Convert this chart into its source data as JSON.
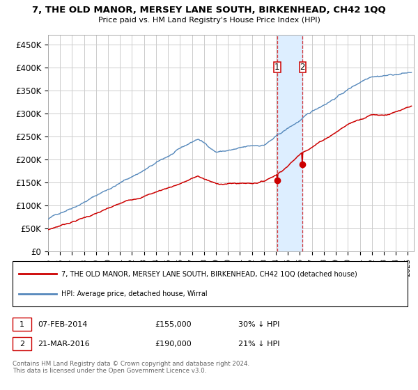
{
  "title": "7, THE OLD MANOR, MERSEY LANE SOUTH, BIRKENHEAD, CH42 1QQ",
  "subtitle": "Price paid vs. HM Land Registry's House Price Index (HPI)",
  "ylabel_ticks": [
    "£0",
    "£50K",
    "£100K",
    "£150K",
    "£200K",
    "£250K",
    "£300K",
    "£350K",
    "£400K",
    "£450K"
  ],
  "ytick_values": [
    0,
    50000,
    100000,
    150000,
    200000,
    250000,
    300000,
    350000,
    400000,
    450000
  ],
  "ylim": [
    0,
    470000
  ],
  "xlim_start": 1995.0,
  "xlim_end": 2025.5,
  "sale1_date": 2014.1,
  "sale1_price": 155000,
  "sale1_label": "07-FEB-2014",
  "sale1_pct": "30% ↓ HPI",
  "sale2_date": 2016.22,
  "sale2_price": 190000,
  "sale2_label": "21-MAR-2016",
  "sale2_pct": "21% ↓ HPI",
  "legend_line1": "7, THE OLD MANOR, MERSEY LANE SOUTH, BIRKENHEAD, CH42 1QQ (detached house)",
  "legend_line2": "HPI: Average price, detached house, Wirral",
  "footer": "Contains HM Land Registry data © Crown copyright and database right 2024.\nThis data is licensed under the Open Government Licence v3.0.",
  "line_color_red": "#cc0000",
  "line_color_blue": "#5588bb",
  "shading_color": "#ddeeff",
  "marker_box_color": "#cc0000",
  "grid_color": "#cccccc",
  "bg_color": "#ffffff"
}
